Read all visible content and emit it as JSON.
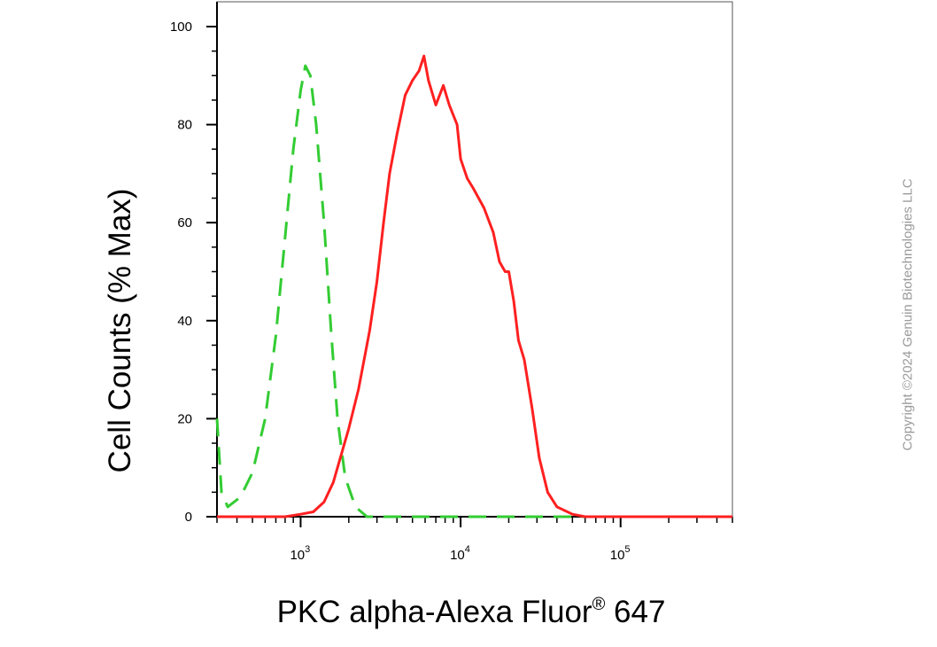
{
  "chart_data": {
    "type": "line",
    "xlabel": "PKC alpha-Alexa Fluor",
    "xlabel_sup": "®",
    "xlabel_suffix": " 647",
    "ylabel": "Cell Counts (% Max)",
    "x_scale": "log",
    "xlim": [
      300,
      500000
    ],
    "ylim": [
      0,
      105
    ],
    "y_ticks": [
      0,
      20,
      40,
      60,
      80,
      100
    ],
    "x_tick_labels": [
      {
        "base": "10",
        "exp": "3",
        "value": 1000
      },
      {
        "base": "10",
        "exp": "4",
        "value": 10000
      },
      {
        "base": "10",
        "exp": "5",
        "value": 100000
      }
    ],
    "grid": false,
    "legend": "none",
    "series": [
      {
        "color": "#33cc33",
        "dash": "dashed",
        "points": [
          [
            300,
            20
          ],
          [
            320,
            5
          ],
          [
            350,
            2
          ],
          [
            420,
            4
          ],
          [
            500,
            9
          ],
          [
            600,
            20
          ],
          [
            700,
            37
          ],
          [
            800,
            57
          ],
          [
            900,
            75
          ],
          [
            1000,
            87
          ],
          [
            1070,
            92
          ],
          [
            1150,
            90
          ],
          [
            1250,
            80
          ],
          [
            1400,
            60
          ],
          [
            1550,
            38
          ],
          [
            1700,
            20
          ],
          [
            1900,
            8
          ],
          [
            2200,
            2
          ],
          [
            2600,
            0
          ],
          [
            3500,
            0
          ],
          [
            500000,
            0
          ]
        ]
      },
      {
        "color": "#ff2020",
        "dash": "solid",
        "points": [
          [
            300,
            0
          ],
          [
            800,
            0
          ],
          [
            1000,
            0.5
          ],
          [
            1200,
            1
          ],
          [
            1400,
            3
          ],
          [
            1600,
            7
          ],
          [
            2000,
            18
          ],
          [
            2300,
            26
          ],
          [
            2700,
            38
          ],
          [
            3000,
            48
          ],
          [
            3300,
            60
          ],
          [
            3600,
            70
          ],
          [
            4000,
            78
          ],
          [
            4500,
            86
          ],
          [
            5000,
            89
          ],
          [
            5500,
            91
          ],
          [
            5900,
            94
          ],
          [
            6300,
            89
          ],
          [
            7000,
            84
          ],
          [
            7800,
            88
          ],
          [
            8500,
            84
          ],
          [
            9500,
            80
          ],
          [
            10000,
            73
          ],
          [
            11000,
            69
          ],
          [
            12000,
            67
          ],
          [
            14000,
            63
          ],
          [
            16000,
            58
          ],
          [
            17500,
            52
          ],
          [
            19000,
            50
          ],
          [
            20000,
            50
          ],
          [
            21500,
            44
          ],
          [
            23000,
            36
          ],
          [
            25000,
            32
          ],
          [
            28000,
            22
          ],
          [
            31000,
            12
          ],
          [
            35000,
            5
          ],
          [
            40000,
            2
          ],
          [
            50000,
            0.5
          ],
          [
            60000,
            0
          ],
          [
            500000,
            0
          ]
        ]
      }
    ]
  },
  "watermark": "Copyright ©2024 Genuin Biotechnologies LLC"
}
